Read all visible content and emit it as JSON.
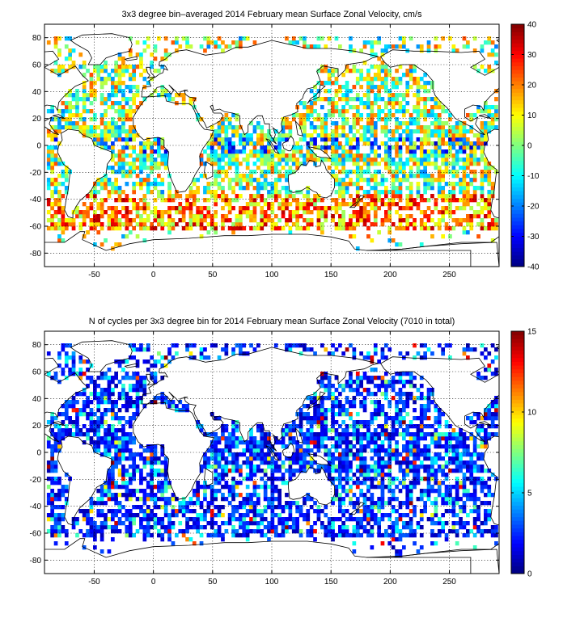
{
  "chart_data": [
    {
      "type": "heatmap",
      "title": "3x3 degree bin–averaged 2014 February mean Surface Zonal Velocity, cm/s",
      "xlim": [
        -92,
        292
      ],
      "ylim": [
        -90,
        90
      ],
      "xticks": [
        -50,
        0,
        50,
        100,
        150,
        200,
        250
      ],
      "yticks": [
        80,
        60,
        40,
        20,
        0,
        -20,
        -40,
        -60,
        -80
      ],
      "grid": true,
      "bin_size_deg": 3,
      "colorbar": {
        "min": -40,
        "max": 40,
        "ticks": [
          40,
          30,
          20,
          10,
          0,
          -10,
          -20,
          -30,
          -40
        ]
      },
      "colormap": "jet",
      "seed": 11
    },
    {
      "type": "heatmap",
      "title": "N of cycles per 3x3 degree bin for 2014 February mean Surface Zonal Velocity (7010 in total)",
      "xlim": [
        -92,
        292
      ],
      "ylim": [
        -90,
        90
      ],
      "xticks": [
        -50,
        0,
        50,
        100,
        150,
        200,
        250
      ],
      "yticks": [
        80,
        60,
        40,
        20,
        0,
        -20,
        -40,
        -60,
        -80
      ],
      "grid": true,
      "bin_size_deg": 3,
      "colorbar": {
        "min": 0,
        "max": 15,
        "ticks": [
          15,
          10,
          5,
          0
        ]
      },
      "colormap": "jet",
      "seed": 29
    }
  ]
}
